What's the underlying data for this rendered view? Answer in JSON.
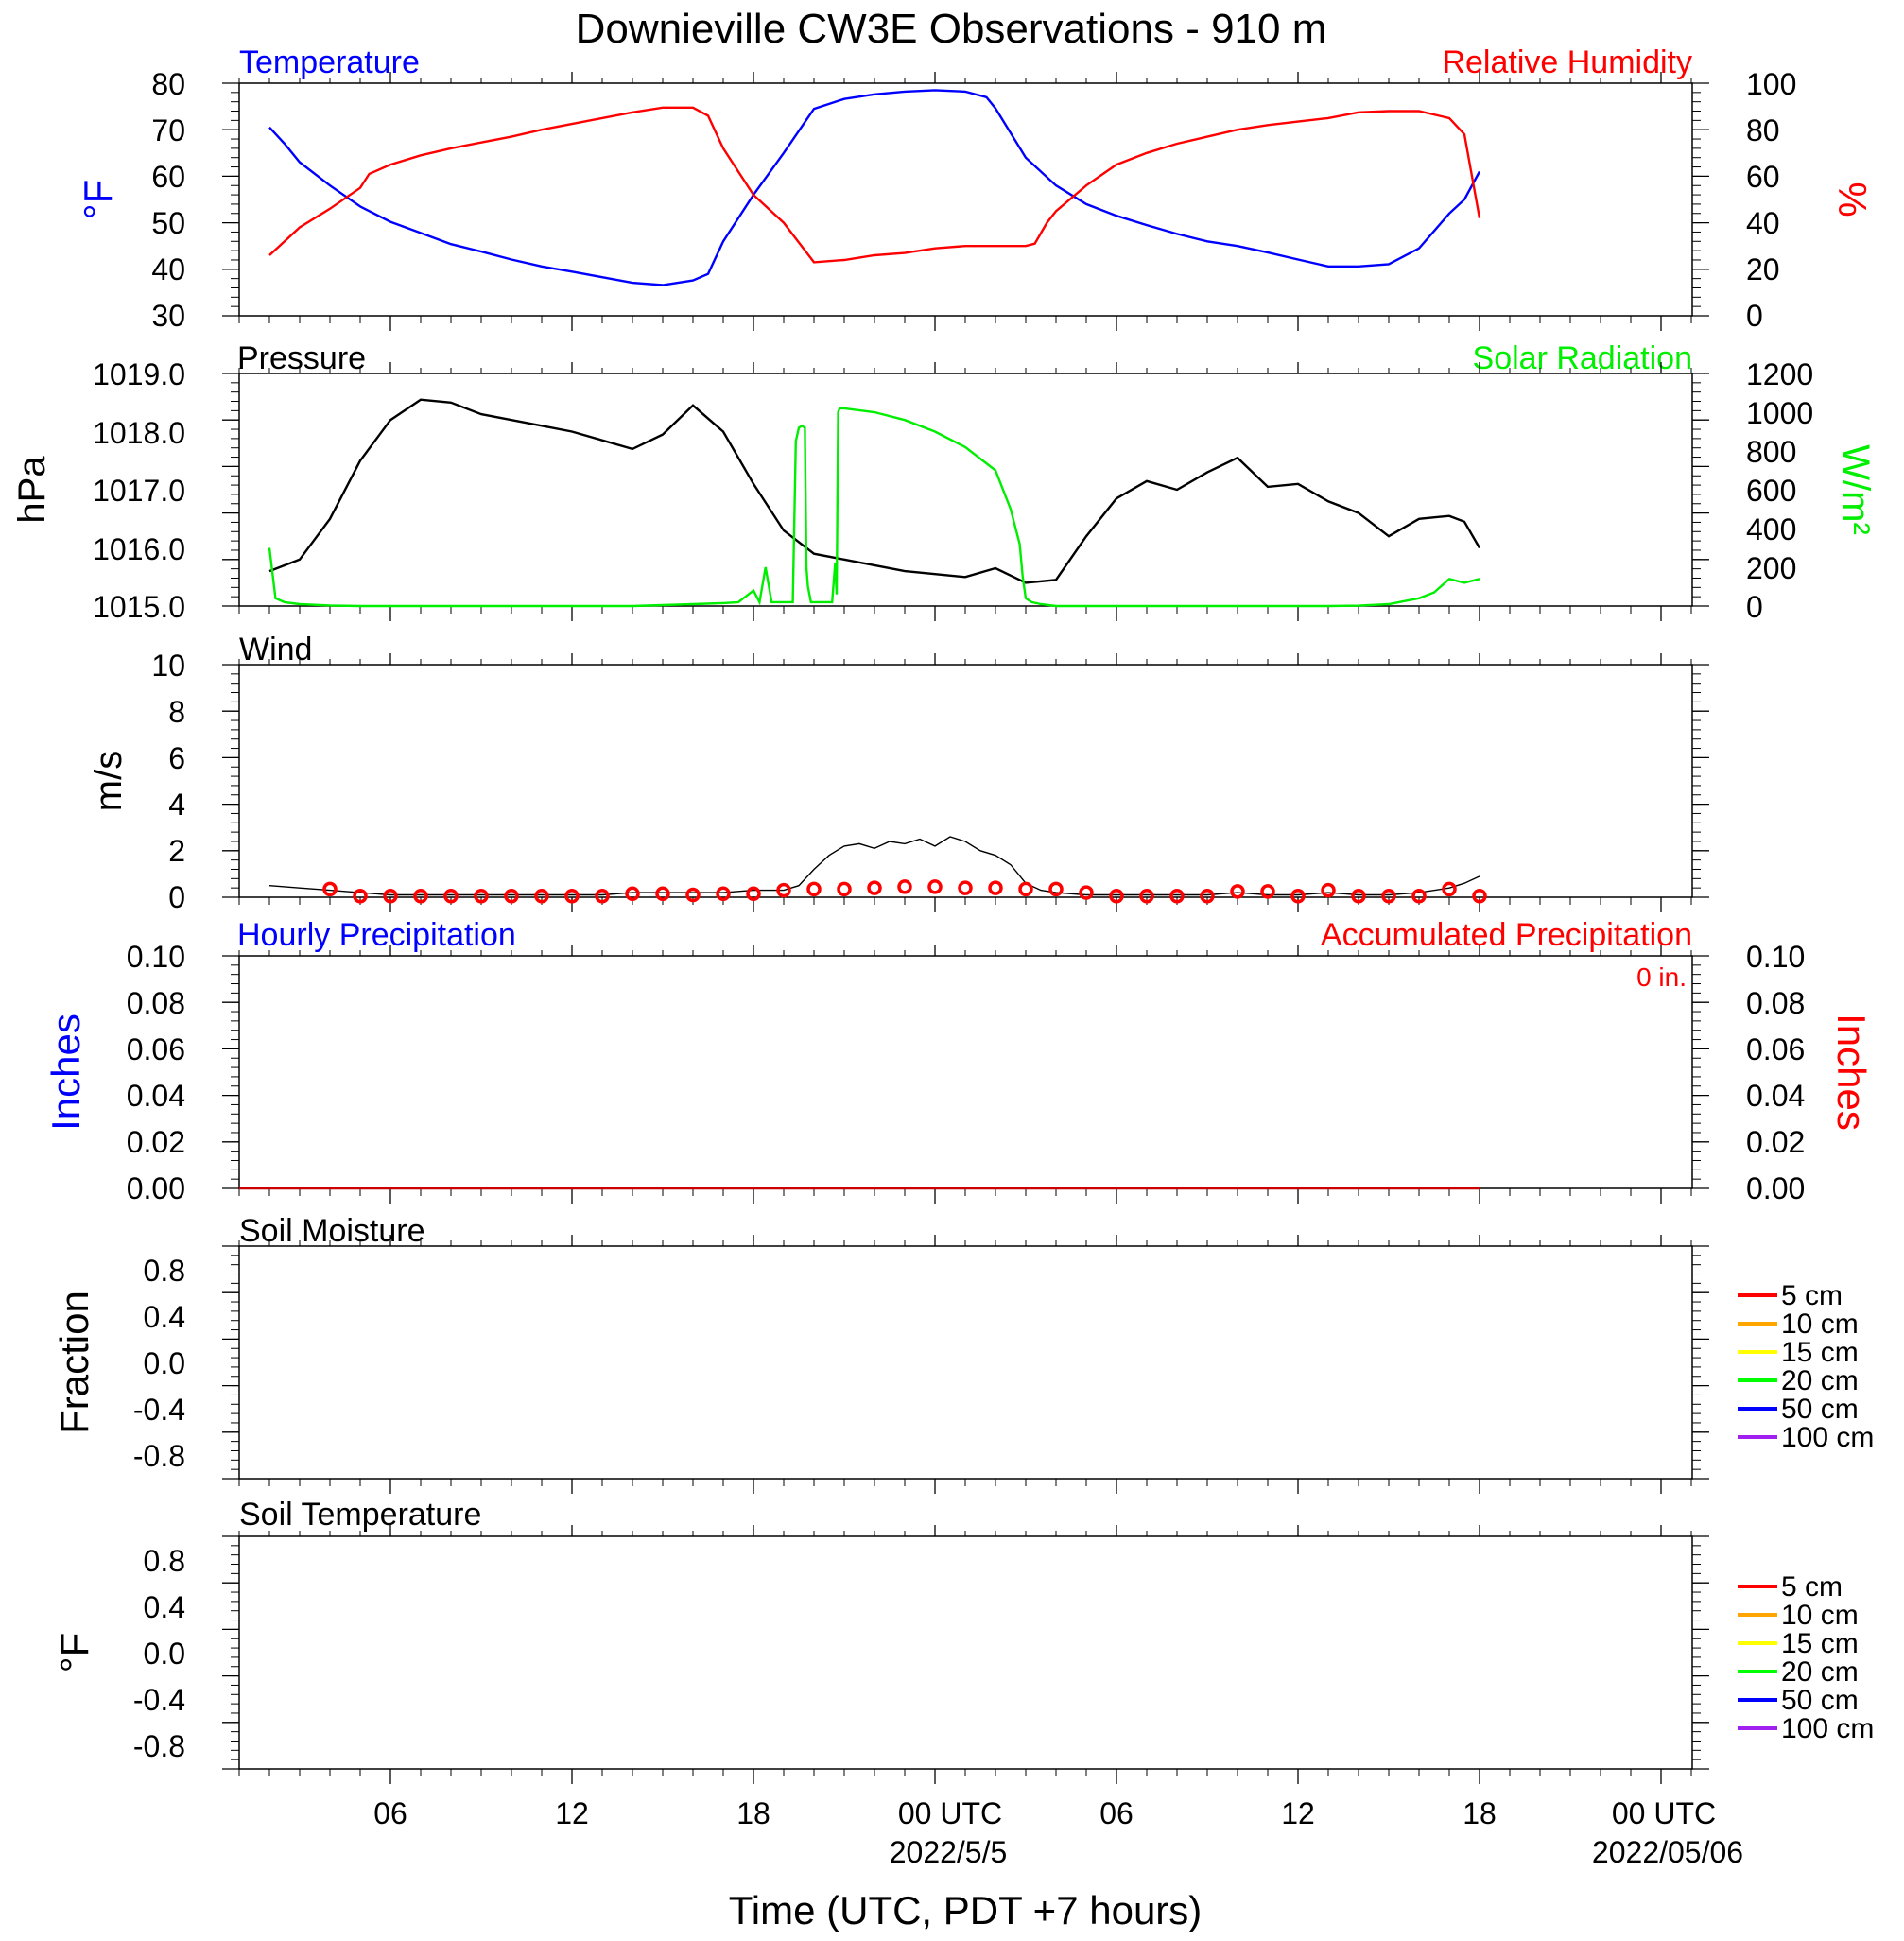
{
  "title": "Downieville CW3E Observations - 910 m",
  "colors": {
    "temperature": "#0000ff",
    "humidity": "#ff0000",
    "pressure": "#000000",
    "solar": "#00ee00",
    "wind": "#000000",
    "wind_marker": "#ff0000",
    "hourly_precip_label": "#0000ff",
    "accum_precip": "#cc0000",
    "soil_legend": [
      "#ff0000",
      "#ffa500",
      "#ffff00",
      "#00ff00",
      "#0000ff",
      "#a020f0"
    ]
  },
  "chart_data": [
    {
      "type": "line",
      "id": "temp_rh",
      "title_left": "Temperature",
      "title_right": "Relative Humidity",
      "ylabel_left": "°F",
      "ylabel_right": "%",
      "ylim_left": [
        30,
        80
      ],
      "ylim_right": [
        0,
        100
      ],
      "yticks_left": [
        "80",
        "70",
        "60",
        "50",
        "40",
        "30"
      ],
      "yticks_right": [
        "100",
        "80",
        "60",
        "40",
        "20",
        "0"
      ],
      "grid": false,
      "x_hours_since_start": [
        1,
        2,
        3,
        4,
        5,
        6,
        7,
        8,
        9,
        10,
        11,
        12,
        13,
        14,
        15,
        16,
        17,
        18,
        19,
        20,
        21,
        22,
        23,
        24,
        25,
        26,
        27,
        28,
        29,
        30,
        31,
        32,
        33,
        34,
        35,
        36,
        37,
        38,
        39,
        40,
        41
      ],
      "series": [
        {
          "name": "Temperature",
          "axis": "left",
          "x": [
            1,
            1.5,
            2,
            3,
            4,
            5,
            6,
            7,
            8,
            9,
            10,
            11,
            12,
            13,
            14,
            15,
            15.5,
            16,
            17,
            18,
            19,
            20,
            21,
            22,
            23,
            24,
            24.7,
            25,
            26,
            27,
            28,
            29,
            30,
            31,
            32,
            33,
            34,
            35,
            36,
            37,
            38,
            39,
            40,
            40.5,
            41
          ],
          "values": [
            70.5,
            67,
            63,
            58,
            53.5,
            50.2,
            47.8,
            45.4,
            43.8,
            42.1,
            40.6,
            39.5,
            38.3,
            37.1,
            36.6,
            37.6,
            39,
            46,
            56,
            65,
            74.5,
            76.6,
            77.6,
            78.2,
            78.5,
            78.2,
            77,
            74.6,
            64,
            58,
            54,
            51.5,
            49.5,
            47.6,
            46,
            45,
            43.6,
            42.1,
            40.6,
            40.6,
            41.1,
            44.5,
            52,
            55,
            61
          ]
        },
        {
          "name": "Relative Humidity",
          "axis": "right",
          "x": [
            1,
            1.5,
            2,
            3,
            4,
            4.3,
            5,
            6,
            7,
            8,
            9,
            10,
            11,
            12,
            13,
            14,
            15,
            15.5,
            16,
            17,
            18,
            19,
            20,
            21,
            22,
            23,
            24,
            25,
            26,
            26.3,
            26.7,
            27,
            28,
            29,
            30,
            31,
            32,
            33,
            34,
            35,
            36,
            37,
            38,
            39,
            40,
            40.5,
            41
          ],
          "values": [
            26,
            32,
            38,
            46,
            55,
            61,
            65,
            69,
            72,
            74.5,
            77,
            80,
            82.5,
            85,
            87.5,
            89.5,
            89.5,
            86,
            72,
            52,
            40,
            23,
            24,
            26,
            27,
            29,
            30,
            30,
            30,
            31,
            40,
            45,
            56,
            65,
            70,
            74,
            77,
            80,
            82,
            83.5,
            85,
            87.5,
            88,
            88,
            85,
            78,
            42
          ]
        }
      ]
    },
    {
      "type": "line",
      "id": "pressure_solar",
      "title_left": "Pressure",
      "title_right": "Solar Radiation",
      "ylabel_left": "hPa",
      "ylabel_right": "W/m²",
      "ylim_left": [
        1015.0,
        1019.0
      ],
      "ylim_right": [
        0,
        1200
      ],
      "yticks_left": [
        "1019.0",
        "1018.0",
        "1017.0",
        "1016.0",
        "1015.0"
      ],
      "yticks_right": [
        "1200",
        "1000",
        "800",
        "600",
        "400",
        "200",
        "0"
      ],
      "grid": false,
      "series": [
        {
          "name": "Pressure",
          "axis": "left",
          "x": [
            1,
            2,
            3,
            4,
            5,
            6,
            7,
            8,
            9,
            10,
            11,
            12,
            13,
            14,
            15,
            16,
            17,
            18,
            19,
            20,
            21,
            22,
            23,
            24,
            25,
            26,
            27,
            28,
            29,
            30,
            31,
            32,
            33,
            34,
            35,
            36,
            37,
            38,
            39,
            40,
            40.5,
            41
          ],
          "values": [
            1015.6,
            1015.8,
            1016.5,
            1017.5,
            1018.2,
            1018.55,
            1018.5,
            1018.3,
            1018.2,
            1018.1,
            1018.0,
            1017.85,
            1017.7,
            1017.95,
            1018.45,
            1018.0,
            1017.1,
            1016.3,
            1015.9,
            1015.8,
            1015.7,
            1015.6,
            1015.55,
            1015.5,
            1015.65,
            1015.4,
            1015.45,
            1016.2,
            1016.85,
            1017.15,
            1017.0,
            1017.3,
            1017.55,
            1017.05,
            1017.1,
            1016.8,
            1016.6,
            1016.2,
            1016.5,
            1016.55,
            1016.45,
            1016.0
          ]
        },
        {
          "name": "Solar Radiation",
          "axis": "right",
          "x": [
            1,
            1.2,
            1.5,
            2,
            3,
            4,
            5,
            6,
            7,
            8,
            9,
            10,
            11,
            12,
            13,
            14,
            15,
            16,
            16.5,
            17,
            17.2,
            17.4,
            17.6,
            18,
            18.3,
            18.4,
            18.5,
            18.6,
            18.7,
            18.75,
            18.8,
            18.9,
            19.0,
            19.1,
            19.3,
            19.5,
            19.6,
            19.7,
            19.75,
            19.8,
            19.85,
            20,
            21,
            22,
            23,
            24,
            25,
            25.5,
            25.8,
            25.9,
            26.0,
            26.2,
            26.5,
            27,
            28,
            29,
            30,
            31,
            32,
            33,
            34,
            35,
            36,
            37,
            38,
            39,
            39.5,
            40,
            40.5,
            41
          ],
          "values": [
            300,
            40,
            20,
            10,
            3,
            0,
            0,
            0,
            0,
            0,
            0,
            0,
            0,
            0,
            0,
            5,
            10,
            15,
            20,
            80,
            20,
            200,
            20,
            20,
            20,
            850,
            920,
            930,
            920,
            200,
            100,
            20,
            20,
            20,
            20,
            20,
            20,
            220,
            60,
            1000,
            1020,
            1020,
            1000,
            960,
            900,
            820,
            700,
            500,
            320,
            150,
            40,
            20,
            10,
            0,
            0,
            0,
            0,
            0,
            0,
            0,
            0,
            0,
            0,
            2,
            10,
            40,
            70,
            140,
            120,
            140
          ]
        }
      ]
    },
    {
      "type": "line",
      "id": "wind",
      "title_left": "Wind",
      "ylabel_left": "m/s",
      "ylim_left": [
        0,
        10
      ],
      "yticks_left": [
        "10",
        "8",
        "6",
        "4",
        "2",
        "0"
      ],
      "grid": false,
      "series": [
        {
          "name": "Wind",
          "axis": "left",
          "x": [
            1,
            2,
            3,
            4,
            5,
            6,
            7,
            8,
            9,
            10,
            11,
            12,
            13,
            14,
            15,
            16,
            17,
            18,
            18.5,
            19,
            19.5,
            20,
            20.5,
            21,
            21.5,
            22,
            22.5,
            23,
            23.5,
            24,
            24.5,
            25,
            25.5,
            26,
            26.5,
            27,
            28,
            29,
            30,
            31,
            32,
            33,
            34,
            35,
            36,
            37,
            38,
            39,
            40,
            40.5,
            41
          ],
          "values": [
            0.5,
            0.4,
            0.3,
            0.2,
            0.1,
            0.1,
            0.1,
            0.1,
            0.1,
            0.1,
            0.1,
            0.1,
            0.2,
            0.2,
            0.2,
            0.2,
            0.3,
            0.3,
            0.5,
            1.2,
            1.8,
            2.2,
            2.3,
            2.1,
            2.4,
            2.3,
            2.5,
            2.2,
            2.6,
            2.4,
            2.0,
            1.8,
            1.4,
            0.6,
            0.3,
            0.2,
            0.1,
            0.1,
            0.1,
            0.1,
            0.1,
            0.2,
            0.1,
            0.1,
            0.2,
            0.1,
            0.1,
            0.2,
            0.4,
            0.6,
            0.9
          ]
        }
      ],
      "wind_markers": {
        "x": [
          3,
          4,
          5,
          6,
          7,
          8,
          9,
          10,
          11,
          12,
          13,
          14,
          15,
          16,
          17,
          18,
          19,
          20,
          21,
          22,
          23,
          24,
          25,
          26,
          27,
          28,
          29,
          30,
          31,
          32,
          33,
          34,
          35,
          36,
          37,
          38,
          39,
          40,
          41
        ],
        "values": [
          0.35,
          0.05,
          0.05,
          0.05,
          0.05,
          0.05,
          0.05,
          0.05,
          0.05,
          0.05,
          0.15,
          0.15,
          0.1,
          0.15,
          0.15,
          0.3,
          0.35,
          0.35,
          0.4,
          0.45,
          0.45,
          0.4,
          0.4,
          0.35,
          0.35,
          0.2,
          0.05,
          0.05,
          0.05,
          0.05,
          0.25,
          0.25,
          0.05,
          0.3,
          0.05,
          0.05,
          0.05,
          0.35,
          0.05
        ]
      }
    },
    {
      "type": "line",
      "id": "precip",
      "title_left": "Hourly Precipitation",
      "title_right": "Accumulated Precipitation",
      "annotation": "0 in.",
      "ylabel_left": "Inches",
      "ylabel_right": "Inches",
      "ylim_left": [
        0,
        0.1
      ],
      "ylim_right": [
        0,
        0.1
      ],
      "yticks_left": [
        "0.10",
        "0.08",
        "0.06",
        "0.04",
        "0.02",
        "0.00"
      ],
      "yticks_right": [
        "0.10",
        "0.08",
        "0.06",
        "0.04",
        "0.02",
        "0.00"
      ],
      "grid": false,
      "series": [
        {
          "name": "Accumulated Precipitation",
          "axis": "right",
          "x": [
            0,
            41
          ],
          "values": [
            0,
            0
          ]
        }
      ]
    },
    {
      "type": "line",
      "id": "soil_moisture",
      "title_left": "Soil Moisture",
      "ylabel_left": "Fraction",
      "yticks_left": [
        "0.8",
        "0.4",
        "0.0",
        "-0.4",
        "-0.8"
      ],
      "ylim_left": [
        -1,
        1
      ],
      "grid": false,
      "legend": [
        "5 cm",
        "10 cm",
        "15 cm",
        "20 cm",
        "50 cm",
        "100 cm"
      ],
      "legend_placement": "right",
      "series": []
    },
    {
      "type": "line",
      "id": "soil_temperature",
      "title_left": "Soil Temperature",
      "ylabel_left": "°F",
      "yticks_left": [
        "0.8",
        "0.4",
        "0.0",
        "-0.4",
        "-0.8"
      ],
      "ylim_left": [
        -1,
        1
      ],
      "grid": false,
      "legend": [
        "5 cm",
        "10 cm",
        "15 cm",
        "20 cm",
        "50 cm",
        "100 cm"
      ],
      "legend_placement": "right",
      "series": []
    }
  ],
  "x_axis": {
    "xlabel": "Time (UTC, PDT +7 hours)",
    "xlim_hours": [
      0,
      48
    ],
    "major_hours": [
      5,
      11,
      17,
      23,
      29,
      35,
      41,
      47
    ],
    "tick_labels": [
      "06",
      "12",
      "18",
      "00 UTC",
      "06",
      "12",
      "18",
      "00 UTC"
    ],
    "date_labels": [
      {
        "at_hour": 23,
        "text": "2022/5/5"
      },
      {
        "at_hour": 47,
        "text": "2022/05/06"
      }
    ]
  }
}
